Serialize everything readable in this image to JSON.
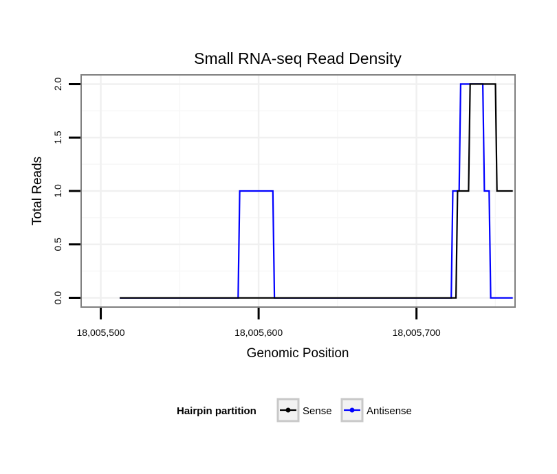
{
  "chart_data": {
    "type": "line",
    "title": "Small RNA-seq Read Density",
    "xlabel": "Genomic Position",
    "ylabel": "Total Reads",
    "xlim": [
      18005488,
      18005762
    ],
    "ylim": [
      -0.08,
      2.08
    ],
    "x_ticks": [
      18005500,
      18005600,
      18005700
    ],
    "x_tick_labels": [
      "18,005,500",
      "18,005,600",
      "18,005,700"
    ],
    "x_minor_ticks": [
      18005550,
      18005650,
      18005750
    ],
    "y_ticks": [
      0.0,
      0.5,
      1.0,
      1.5,
      2.0
    ],
    "y_tick_labels": [
      "0.0",
      "0.5",
      "1.0",
      "1.5",
      "2.0"
    ],
    "y_minor_ticks": [
      0.25,
      0.75,
      1.25,
      1.75
    ],
    "grid": true,
    "legend": {
      "title": "Hairpin partition",
      "placement": "bottom"
    },
    "series": [
      {
        "name": "Antisense",
        "color": "#0000ff",
        "x": [
          18005512,
          18005587,
          18005588,
          18005609,
          18005610,
          18005722,
          18005723,
          18005727,
          18005728,
          18005742,
          18005743,
          18005746,
          18005747,
          18005761
        ],
        "y": [
          0,
          0,
          1,
          1,
          0,
          0,
          1,
          1,
          2,
          2,
          1,
          1,
          0,
          0
        ]
      },
      {
        "name": "Sense",
        "color": "#000000",
        "x": [
          18005512,
          18005725,
          18005726,
          18005733,
          18005734,
          18005750,
          18005751,
          18005761
        ],
        "y": [
          0,
          0,
          1,
          1,
          2,
          2,
          1,
          1
        ]
      }
    ],
    "legend_order": [
      "Sense",
      "Antisense"
    ]
  }
}
